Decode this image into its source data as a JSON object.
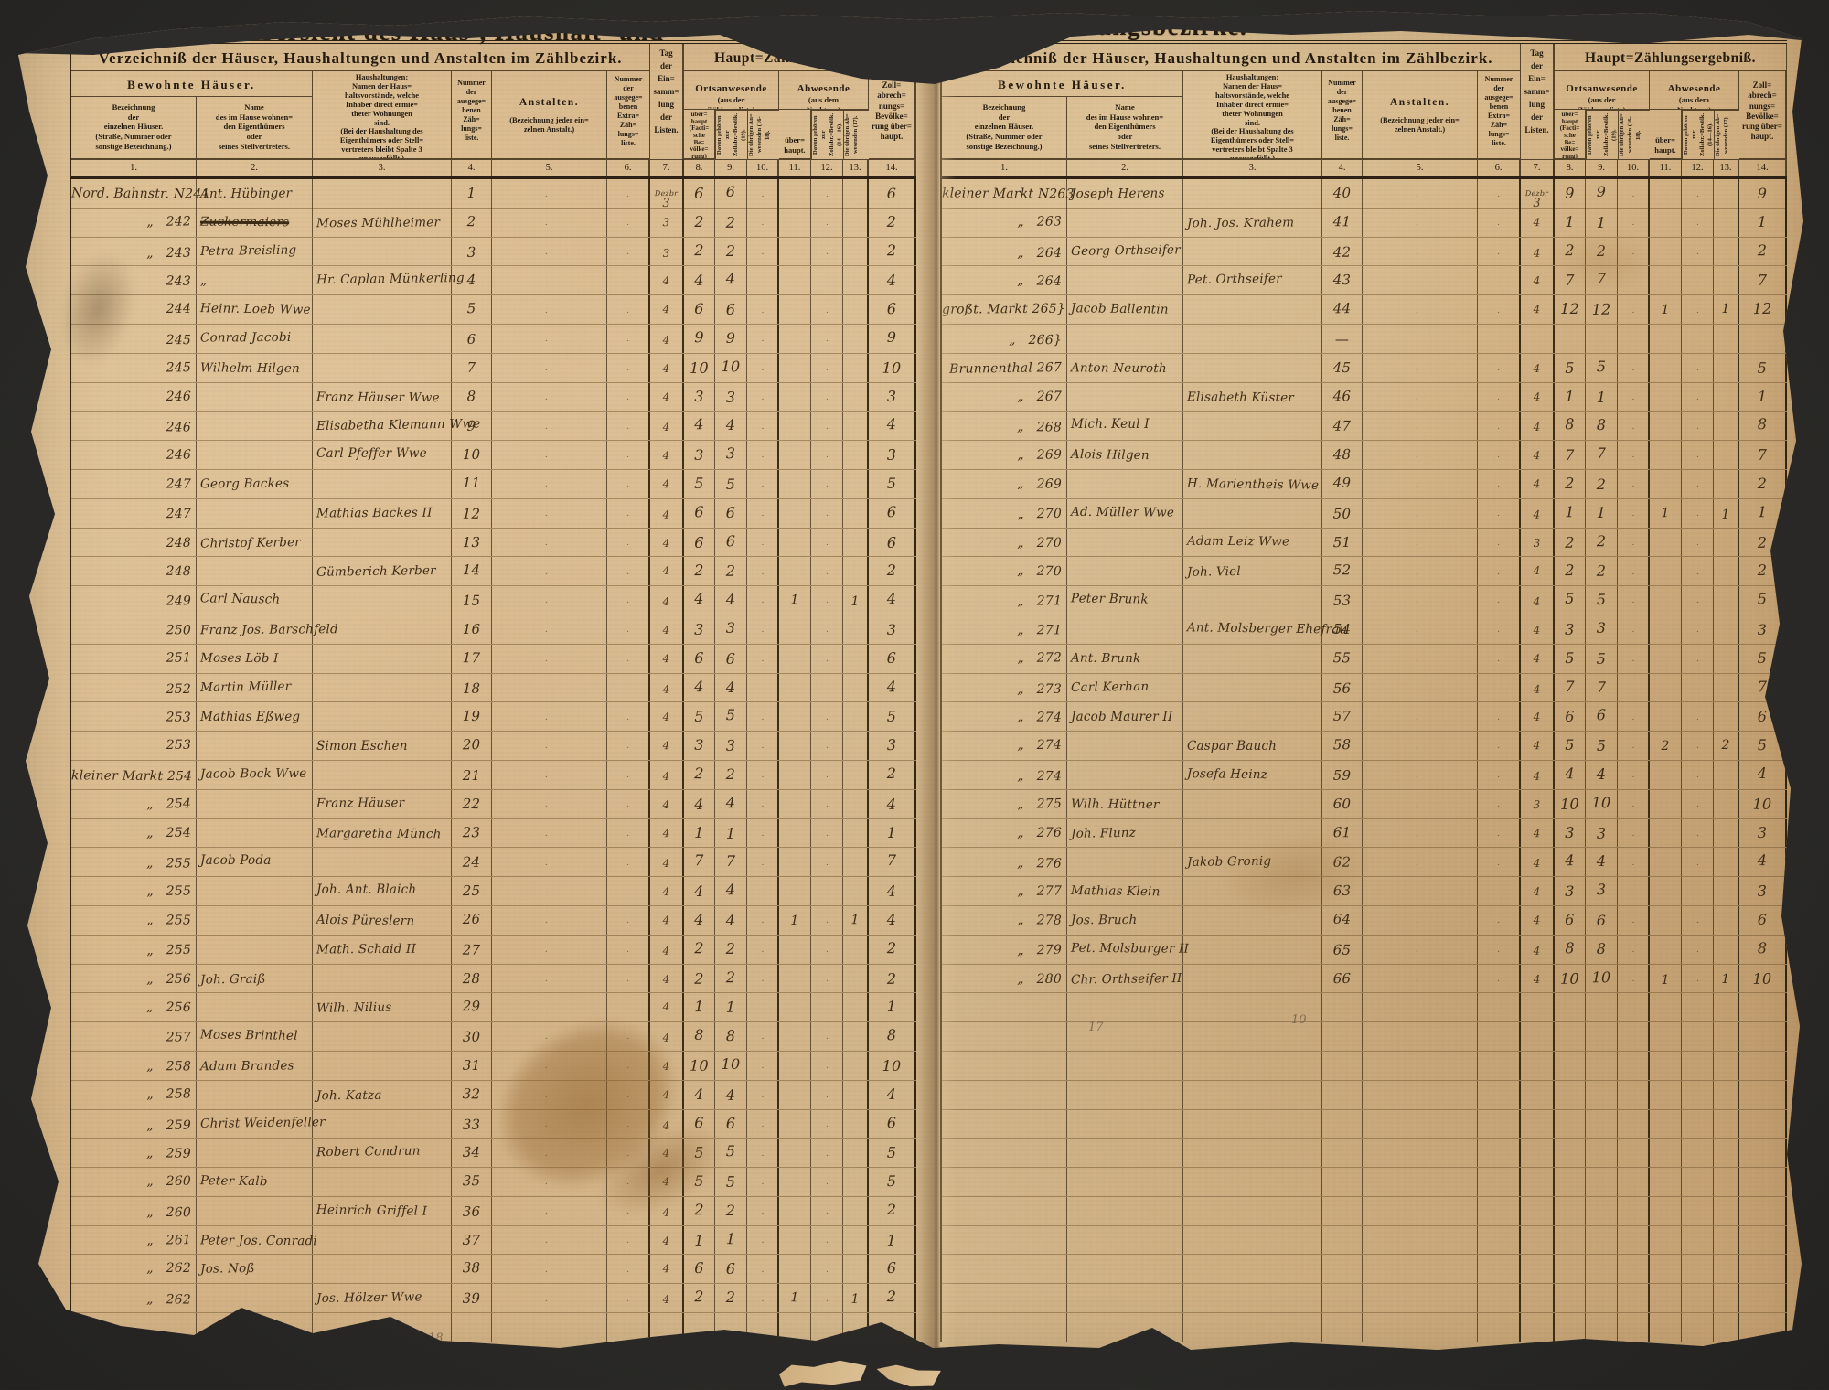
{
  "scan_title": {
    "left_fragment": "Uebersicht des Haus-, Haushalt- und",
    "right_fragment": "Zählungsbezirke."
  },
  "header": {
    "registry_title": "Verzeichniß der Häuser, Haushaltungen und Anstalten im Zählbezirk.",
    "result_title": "Haupt=Zählungsergebniß.",
    "bewohnte": "Bewohnte Häuser.",
    "col1_title": "Bezeichnung\nder\neinzelnen Häuser.\n(Straße, Nummer oder\nsonstige Bezeichnung.)",
    "col2_title": "Name\ndes im Hause wohnen=\nden Eigenthümers\noder\nseines Stellvertreters.",
    "col3_title": "Haushaltungen:\nNamen der Haus=\nhaltsvorstände, welche\nInhaber direct ermie=\ntheter Wohnungen\nsind.\n(Bei der Haushaltung des\nEigenthümers oder Stell=\nvertreters bleibt Spalte 3\nunausgefüllt.)",
    "col4_title": "Nummer\nder\nausgege=\nbenen\nZäh=\nlungs=\nliste.",
    "col5_big": "Anstalten.",
    "col5_small": "(Bezeichnung jeder ein=\nzelnen Anstalt.)",
    "col6_title": "Nummer\nder\nausgege=\nbenen\nExtra=\nZäh=\nlungs=\nliste.",
    "col7_title": "Tag\nder\nEin=\nsamm=\nlung\nder\nListen.",
    "orts_big": "Ortsanwesende",
    "orts_small": "(aus der\nZählungsliste)",
    "abw_big": "Abwesende",
    "abw_small": "(aus dem\nNachtrag)",
    "col8_title": "über=\nhaupt\n(Facti=\nsche\nBe=\nvölke=\nrung)",
    "col9_title": "Davon gehören zur\nZollabr.=Bevölk.\n(19).",
    "col10_title": "Die übrigen An=\nwesenden (16-18).",
    "col11_title": "über=\nhaupt.",
    "col12_title": "Davon gehören zur\nZollabr.=Bevölk.\n(14—16).",
    "col13_title": "Die übrigen Ab=\nwesenden (17).",
    "col14_title": "Zoll=\nabrech=\nnungs=\nBevölke=\nrung über=\nhaupt."
  },
  "col_numbers": [
    "1.",
    "2.",
    "3.",
    "4.",
    "5.",
    "6.",
    "7.",
    "8.",
    "9.",
    "10.",
    "11.",
    "12.",
    "13.",
    "14."
  ],
  "left_rows": [
    [
      "Nord. Bahnstr. N241",
      "Ant. Hübinger",
      "",
      "1",
      "Dezbr 3",
      "6",
      "6",
      "",
      "",
      "",
      "",
      "6"
    ],
    [
      "„   242",
      "Zuckermaiers",
      "Moses Mühlheimer",
      "2",
      "3",
      "2",
      "2",
      "",
      "",
      "",
      "",
      "2",
      "struck"
    ],
    [
      "„   243",
      "Petra Breisling",
      "",
      "3",
      "3",
      "2",
      "2",
      "",
      "",
      "",
      "",
      "2"
    ],
    [
      "243",
      "„",
      "Hr. Caplan Münkerling",
      "4",
      "4",
      "4",
      "4",
      "",
      "",
      "",
      "",
      "4"
    ],
    [
      "244",
      "Heinr. Loeb Wwe",
      "",
      "5",
      "4",
      "6",
      "6",
      "",
      "",
      "",
      "",
      "6"
    ],
    [
      "245",
      "Conrad Jacobi",
      "",
      "6",
      "4",
      "9",
      "9",
      "",
      "",
      "",
      "",
      "9"
    ],
    [
      "245",
      "Wilhelm Hilgen",
      "",
      "7",
      "4",
      "10",
      "10",
      "",
      "",
      "",
      "",
      "10"
    ],
    [
      "246",
      "",
      "Franz Häuser Wwe",
      "8",
      "4",
      "3",
      "3",
      "",
      "",
      "",
      "",
      "3"
    ],
    [
      "246",
      "",
      "Elisabetha Klemann Wwe",
      "9",
      "4",
      "4",
      "4",
      "",
      "",
      "",
      "",
      "4"
    ],
    [
      "246",
      "",
      "Carl Pfeffer Wwe",
      "10",
      "4",
      "3",
      "3",
      "",
      "",
      "",
      "",
      "3"
    ],
    [
      "247",
      "Georg Backes",
      "",
      "11",
      "4",
      "5",
      "5",
      "",
      "",
      "",
      "",
      "5"
    ],
    [
      "247",
      "",
      "Mathias Backes II",
      "12",
      "4",
      "6",
      "6",
      "",
      "",
      "",
      "",
      "6"
    ],
    [
      "248",
      "Christof Kerber",
      "",
      "13",
      "4",
      "6",
      "6",
      "",
      "",
      "",
      "",
      "6"
    ],
    [
      "248",
      "",
      "Gümberich Kerber",
      "14",
      "4",
      "2",
      "2",
      "",
      "",
      "",
      "",
      "2"
    ],
    [
      "249",
      "Carl Nausch",
      "",
      "15",
      "4",
      "4",
      "4",
      "",
      "1",
      "",
      "1",
      "4"
    ],
    [
      "250",
      "Franz Jos. Barschfeld",
      "",
      "16",
      "4",
      "3",
      "3",
      "",
      "",
      "",
      "",
      "3"
    ],
    [
      "251",
      "Moses Löb I",
      "",
      "17",
      "4",
      "6",
      "6",
      "",
      "",
      "",
      "",
      "6"
    ],
    [
      "252",
      "Martin Müller",
      "",
      "18",
      "4",
      "4",
      "4",
      "",
      "",
      "",
      "",
      "4"
    ],
    [
      "253",
      "Mathias Eßweg",
      "",
      "19",
      "4",
      "5",
      "5",
      "",
      "",
      "",
      "",
      "5"
    ],
    [
      "253",
      "",
      "Simon Eschen",
      "20",
      "4",
      "3",
      "3",
      "",
      "",
      "",
      "",
      "3"
    ],
    [
      "kleiner Markt 254",
      "Jacob Bock Wwe",
      "",
      "21",
      "4",
      "2",
      "2",
      "",
      "",
      "",
      "",
      "2"
    ],
    [
      "„   254",
      "",
      "Franz Häuser",
      "22",
      "4",
      "4",
      "4",
      "",
      "",
      "",
      "",
      "4"
    ],
    [
      "„   254",
      "",
      "Margaretha Münch",
      "23",
      "4",
      "1",
      "1",
      "",
      "",
      "",
      "",
      "1"
    ],
    [
      "„   255",
      "Jacob Poda",
      "",
      "24",
      "4",
      "7",
      "7",
      "",
      "",
      "",
      "",
      "7"
    ],
    [
      "„   255",
      "",
      "Joh. Ant. Blaich",
      "25",
      "4",
      "4",
      "4",
      "",
      "",
      "",
      "",
      "4"
    ],
    [
      "„   255",
      "",
      "Alois Püreslern",
      "26",
      "4",
      "4",
      "4",
      "",
      "1",
      "",
      "1",
      "4"
    ],
    [
      "„   255",
      "",
      "Math. Schaid II",
      "27",
      "4",
      "2",
      "2",
      "",
      "",
      "",
      "",
      "2"
    ],
    [
      "„   256",
      "Joh. Graiß",
      "",
      "28",
      "4",
      "2",
      "2",
      "",
      "",
      "",
      "",
      "2"
    ],
    [
      "„   256",
      "",
      "Wilh. Nilius",
      "29",
      "4",
      "1",
      "1",
      "",
      "",
      "",
      "",
      "1"
    ],
    [
      "257",
      "Moses Brinthel",
      "",
      "30",
      "4",
      "8",
      "8",
      "",
      "",
      "",
      "",
      "8"
    ],
    [
      "„   258",
      "Adam Brandes",
      "",
      "31",
      "4",
      "10",
      "10",
      "",
      "",
      "",
      "",
      "10"
    ],
    [
      "„   258",
      "",
      "Joh. Katza",
      "32",
      "4",
      "4",
      "4",
      "",
      "",
      "",
      "",
      "4"
    ],
    [
      "„   259",
      "Christ Weidenfeller",
      "",
      "33",
      "4",
      "6",
      "6",
      "",
      "",
      "",
      "",
      "6"
    ],
    [
      "„   259",
      "",
      "Robert Condrun",
      "34",
      "4",
      "5",
      "5",
      "",
      "",
      "",
      "",
      "5"
    ],
    [
      "„   260",
      "Peter Kalb",
      "",
      "35",
      "4",
      "5",
      "5",
      "",
      "",
      "",
      "",
      "5"
    ],
    [
      "„   260",
      "",
      "Heinrich Griffel I",
      "36",
      "4",
      "2",
      "2",
      "",
      "",
      "",
      "",
      "2"
    ],
    [
      "„   261",
      "Peter Jos. Conradi",
      "",
      "37",
      "4",
      "1",
      "1",
      "",
      "",
      "",
      "",
      "1"
    ],
    [
      "„   262",
      "Jos. Noß",
      "",
      "38",
      "4",
      "6",
      "6",
      "",
      "",
      "",
      "",
      "6"
    ],
    [
      "„   262",
      "",
      "Jos. Hölzer Wwe",
      "39",
      "4",
      "2",
      "2",
      "",
      "1",
      "",
      "1",
      "2"
    ]
  ],
  "right_rows": [
    [
      "kleiner Markt N263",
      "Joseph Herens",
      "",
      "40",
      "Dezbr 3",
      "9",
      "9",
      "",
      "",
      "",
      "",
      "9"
    ],
    [
      "„   263",
      "",
      "Joh. Jos. Krahem",
      "41",
      "4",
      "1",
      "1",
      "",
      "",
      "",
      "",
      "1"
    ],
    [
      "„   264",
      "Georg Orthseifer",
      "",
      "42",
      "4",
      "2",
      "2",
      "",
      "",
      "",
      "",
      "2"
    ],
    [
      "„   264",
      "",
      "Pet. Orthseifer",
      "43",
      "4",
      "7",
      "7",
      "",
      "",
      "",
      "",
      "7"
    ],
    [
      "großt. Markt 265}",
      "Jacob Ballentin",
      "",
      "44",
      "4",
      "12",
      "12",
      "",
      "1",
      "",
      "1",
      "12"
    ],
    [
      "„   266}",
      "",
      "",
      "—",
      "",
      "",
      "",
      "",
      "",
      "",
      "",
      ""
    ],
    [
      "Brunnenthal 267",
      "Anton Neuroth",
      "",
      "45",
      "4",
      "5",
      "5",
      "",
      "",
      "",
      "",
      "5"
    ],
    [
      "„   267",
      "",
      "Elisabeth Küster",
      "46",
      "4",
      "1",
      "1",
      "",
      "",
      "",
      "",
      "1"
    ],
    [
      "„   268",
      "Mich. Keul I",
      "",
      "47",
      "4",
      "8",
      "8",
      "",
      "",
      "",
      "",
      "8"
    ],
    [
      "„   269",
      "Alois Hilgen",
      "",
      "48",
      "4",
      "7",
      "7",
      "",
      "",
      "",
      "",
      "7"
    ],
    [
      "„   269",
      "",
      "H. Marientheis Wwe",
      "49",
      "4",
      "2",
      "2",
      "",
      "",
      "",
      "",
      "2"
    ],
    [
      "„   270",
      "Ad. Müller Wwe",
      "",
      "50",
      "4",
      "1",
      "1",
      "",
      "1",
      "",
      "1",
      "1"
    ],
    [
      "„   270",
      "",
      "Adam Leiz Wwe",
      "51",
      "3",
      "2",
      "2",
      "",
      "",
      "",
      "",
      "2"
    ],
    [
      "„   270",
      "",
      "Joh. Viel",
      "52",
      "4",
      "2",
      "2",
      "",
      "",
      "",
      "",
      "2"
    ],
    [
      "„   271",
      "Peter Brunk",
      "",
      "53",
      "4",
      "5",
      "5",
      "",
      "",
      "",
      "",
      "5"
    ],
    [
      "„   271",
      "",
      "Ant. Molsberger Ehefrau",
      "54",
      "4",
      "3",
      "3",
      "",
      "",
      "",
      "",
      "3"
    ],
    [
      "„   272",
      "Ant. Brunk",
      "",
      "55",
      "4",
      "5",
      "5",
      "",
      "",
      "",
      "",
      "5"
    ],
    [
      "„   273",
      "Carl Kerhan",
      "",
      "56",
      "4",
      "7",
      "7",
      "",
      "",
      "",
      "",
      "7"
    ],
    [
      "„   274",
      "Jacob Maurer II",
      "",
      "57",
      "4",
      "6",
      "6",
      "",
      "",
      "",
      "",
      "6"
    ],
    [
      "„   274",
      "",
      "Caspar Bauch",
      "58",
      "4",
      "5",
      "5",
      "",
      "2",
      "",
      "2",
      "5"
    ],
    [
      "„   274",
      "",
      "Josefa Heinz",
      "59",
      "4",
      "4",
      "4",
      "",
      "",
      "",
      "",
      "4"
    ],
    [
      "„   275",
      "Wilh. Hüttner",
      "",
      "60",
      "3",
      "10",
      "10",
      "",
      "",
      "",
      "",
      "10"
    ],
    [
      "„   276",
      "Joh. Flunz",
      "",
      "61",
      "4",
      "3",
      "3",
      "",
      "",
      "",
      "",
      "3"
    ],
    [
      "„   276",
      "",
      "Jakob Gronig",
      "62",
      "4",
      "4",
      "4",
      "",
      "",
      "",
      "",
      "4"
    ],
    [
      "„   277",
      "Mathias Klein",
      "",
      "63",
      "4",
      "3",
      "3",
      "",
      "",
      "",
      "",
      "3"
    ],
    [
      "„   278",
      "Jos. Bruch",
      "",
      "64",
      "4",
      "6",
      "6",
      "",
      "",
      "",
      "",
      "6"
    ],
    [
      "„   279",
      "Pet. Molsburger II",
      "",
      "65",
      "4",
      "8",
      "8",
      "",
      "",
      "",
      "",
      "8"
    ],
    [
      "„   280",
      "Chr. Orthseifer II",
      "",
      "66",
      "4",
      "10",
      "10",
      "",
      "1",
      "",
      "1",
      "10"
    ]
  ],
  "pencil": {
    "left_page": "18",
    "right_owner_count": "17",
    "right_head_count": "10"
  },
  "colors": {
    "paper": "#d6b788",
    "ink": "#241a0e",
    "handwriting": "#3f2d17",
    "backdrop": "#2b2a27"
  }
}
